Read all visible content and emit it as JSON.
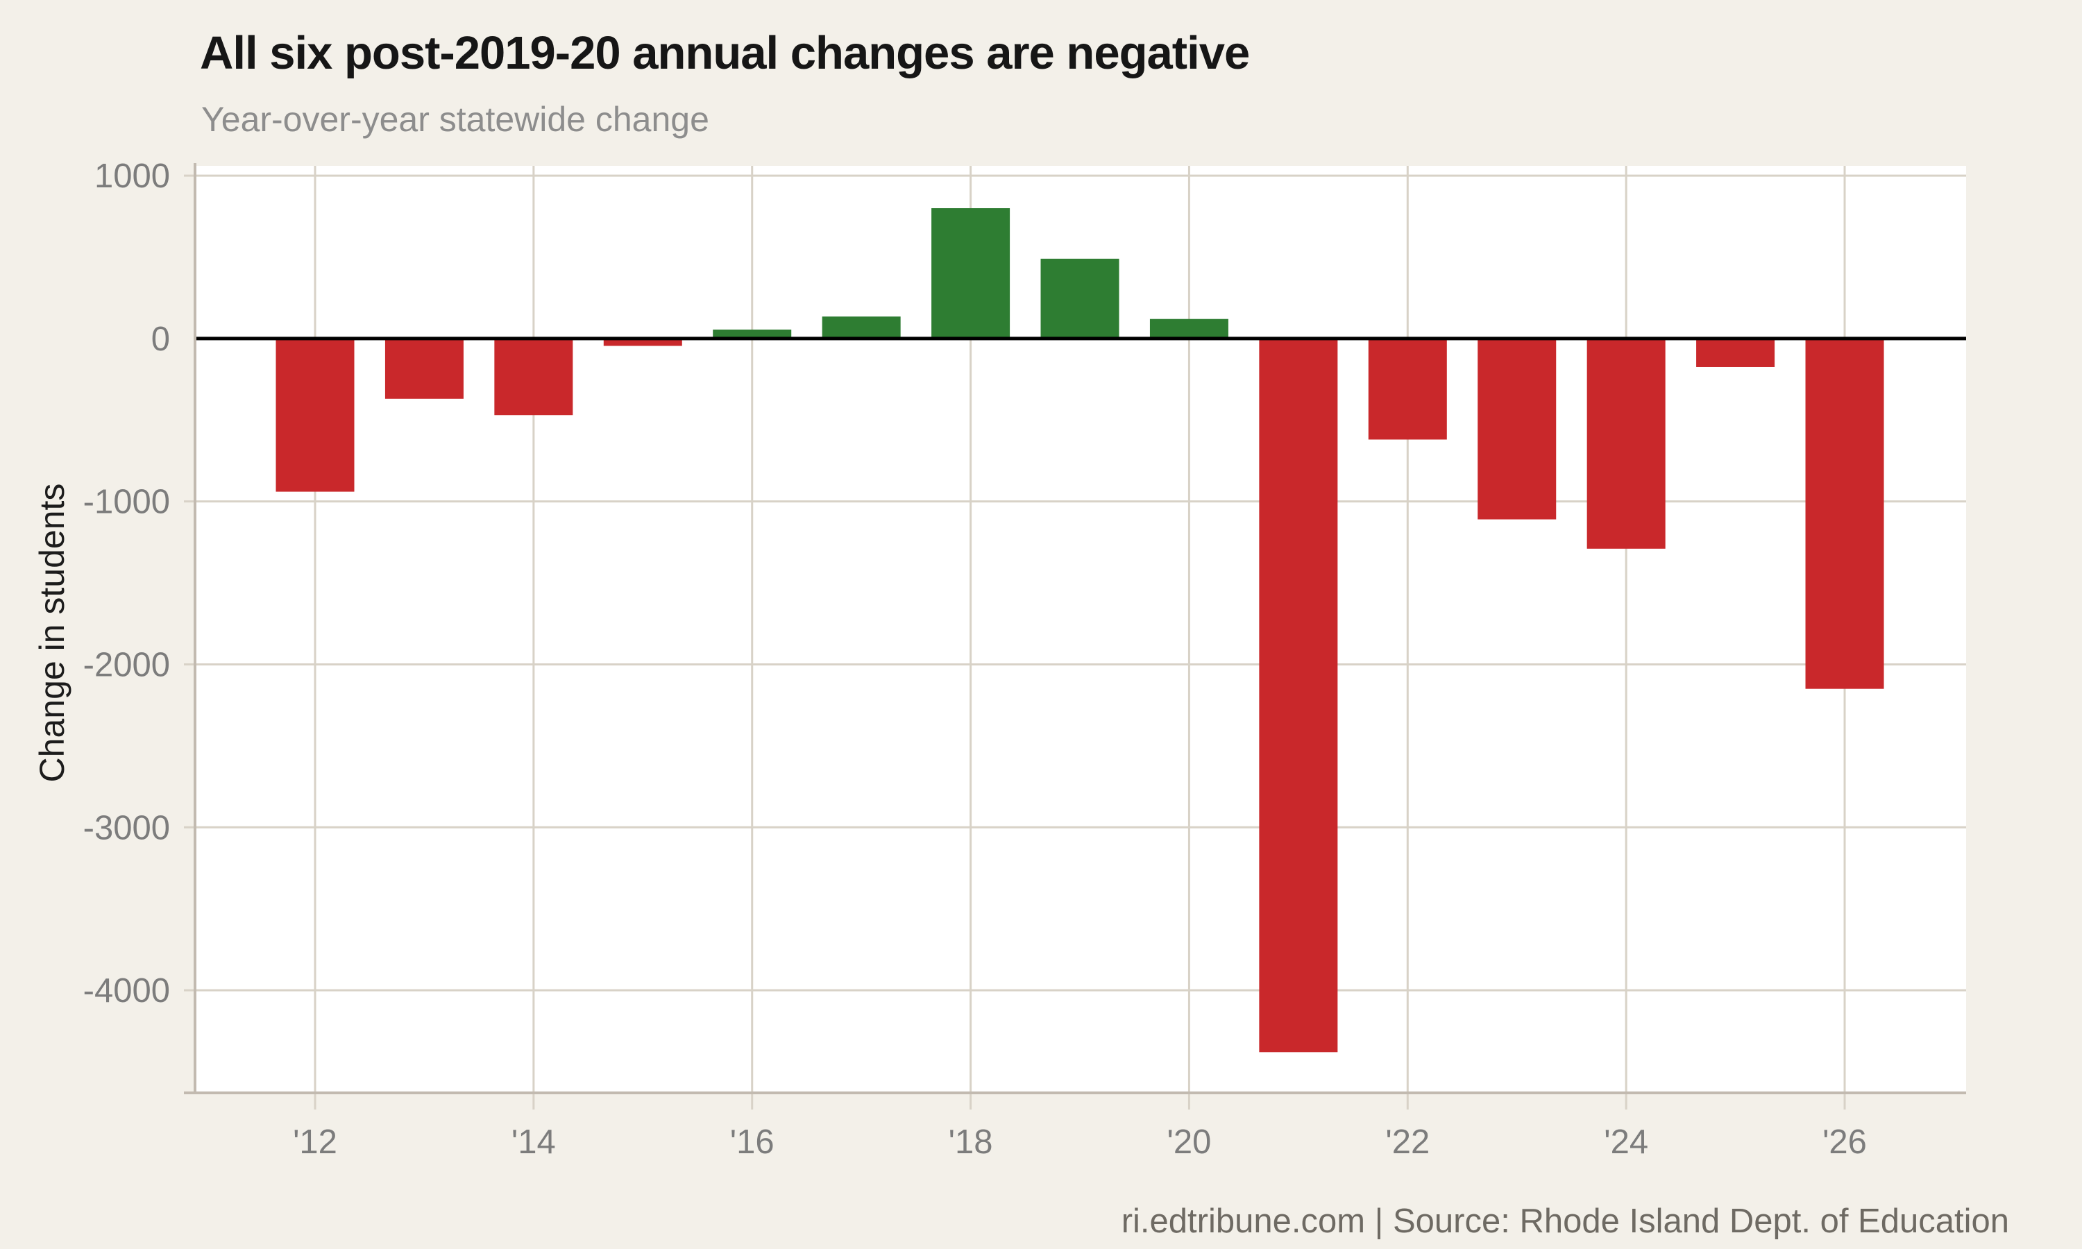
{
  "header": {
    "title": "All six post-2019-20 annual changes are negative",
    "subtitle": "Year-over-year statewide change"
  },
  "footer": {
    "credit": "ri.edtribune.com | Source: Rhode Island Dept. of Education"
  },
  "chart_data": {
    "type": "bar",
    "title": "All six post-2019-20 annual changes are negative",
    "subtitle": "Year-over-year statewide change",
    "categories": [
      "'12",
      "'13",
      "'14",
      "'15",
      "'16",
      "'17",
      "'18",
      "'19",
      "'20",
      "'21",
      "'22",
      "'23",
      "'24",
      "'25",
      "'26"
    ],
    "values": [
      -940,
      -370,
      -470,
      -45,
      55,
      135,
      800,
      490,
      120,
      -4380,
      -620,
      -1110,
      -1290,
      -175,
      -2150
    ],
    "xlabel": "",
    "ylabel": "Change in students",
    "y_ticks": [
      1000,
      0,
      -1000,
      -2000,
      -3000,
      -4000
    ],
    "x_tick_labels": [
      "'12",
      "'14",
      "'16",
      "'18",
      "'20",
      "'22",
      "'24",
      "'26"
    ],
    "ylim": [
      -4630,
      1060
    ],
    "grid": true,
    "zero_line": true,
    "legend": "none",
    "positive_color": "#2e7d32",
    "negative_color": "#c9282b",
    "page_background": "#f3f0e9",
    "plot_background": "#ffffff",
    "gridline_color": "#d8d2c7",
    "axis_line_color": "#c2bab0",
    "tick_label_color": "#7c7c7c",
    "source_note": "ri.edtribune.com | Source: Rhode Island Dept. of Education"
  }
}
